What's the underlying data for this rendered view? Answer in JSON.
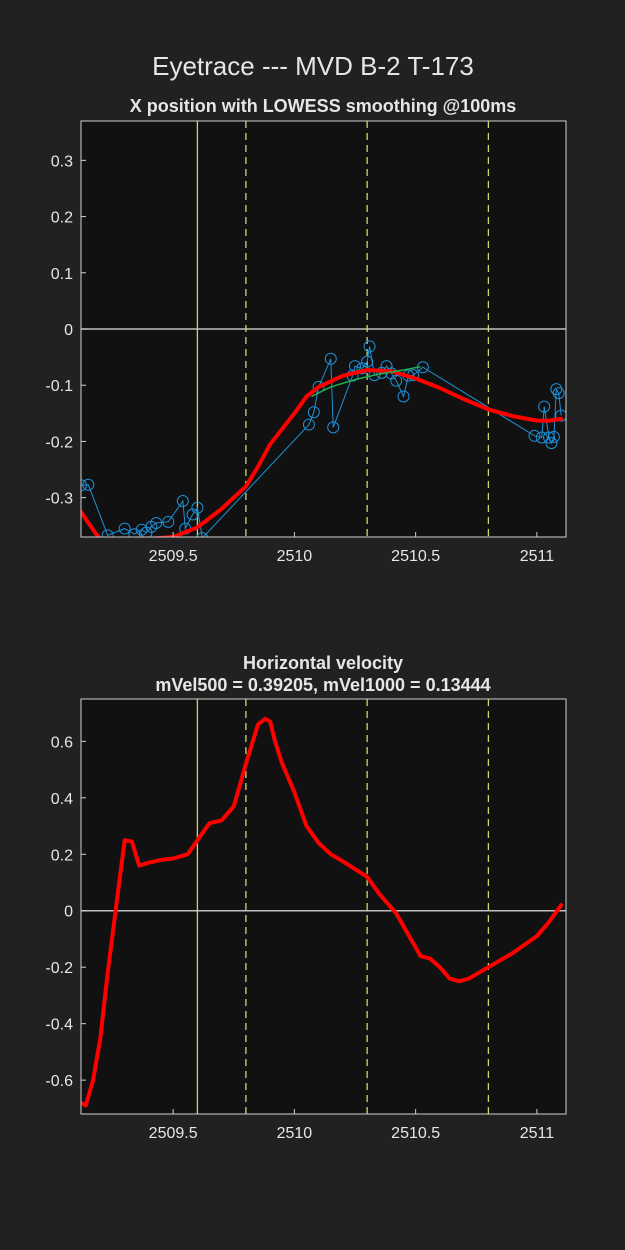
{
  "figure_title": "Eyetrace --- MVD B-2 T-173",
  "colors": {
    "background": "#212121",
    "axes_background": "#111111",
    "trace": "#ff0000",
    "raw_points": "#1e90d8",
    "fit": "#22b14c",
    "event_line": "#d4d46a",
    "zero_line": "#c0c0c0",
    "text": "#e6e6e6"
  },
  "chart_data": [
    {
      "type": "line",
      "title": "X position with LOWESS smoothing @100ms",
      "xlabel": "",
      "ylabel": "",
      "xlim": [
        2509.12,
        2511.12
      ],
      "ylim": [
        -0.37,
        0.37
      ],
      "x_ticks": [
        2509.5,
        2510,
        2510.5,
        2511
      ],
      "x_tick_labels": [
        "2509.5",
        "2510",
        "2510.5",
        "2511"
      ],
      "y_ticks": [
        -0.3,
        -0.2,
        -0.1,
        0,
        0.1,
        0.2,
        0.3
      ],
      "y_tick_labels": [
        "-0.3",
        "-0.2",
        "-0.1",
        "0",
        "0.1",
        "0.2",
        "0.3"
      ],
      "grid": false,
      "zero_line": 0,
      "event_lines_solid": [
        2509.6
      ],
      "event_lines_dashed": [
        2509.8,
        2510.3,
        2510.8
      ],
      "series": [
        {
          "style": "smoothed",
          "x": [
            2509.12,
            2509.15,
            2509.18,
            2509.2,
            2509.3,
            2509.4,
            2509.5,
            2509.6,
            2509.7,
            2509.8,
            2509.85,
            2509.9,
            2510.0,
            2510.05,
            2510.1,
            2510.2,
            2510.3,
            2510.4,
            2510.5,
            2510.6,
            2510.7,
            2510.8,
            2510.9,
            2511.0,
            2511.05,
            2511.1
          ],
          "y": [
            -0.325,
            -0.345,
            -0.363,
            -0.375,
            -0.375,
            -0.373,
            -0.37,
            -0.353,
            -0.32,
            -0.28,
            -0.245,
            -0.205,
            -0.15,
            -0.12,
            -0.103,
            -0.083,
            -0.073,
            -0.075,
            -0.088,
            -0.105,
            -0.125,
            -0.143,
            -0.155,
            -0.163,
            -0.163,
            -0.16
          ]
        },
        {
          "style": "fit",
          "x": [
            2510.07,
            2510.15,
            2510.25,
            2510.35,
            2510.45,
            2510.52
          ],
          "y": [
            -0.12,
            -0.103,
            -0.09,
            -0.08,
            -0.073,
            -0.067
          ]
        },
        {
          "style": "raw",
          "x": [
            2509.12,
            2509.15,
            2509.23,
            2509.3,
            2509.34,
            2509.37,
            2509.39,
            2509.41,
            2509.43,
            2509.48,
            2509.54,
            2509.55,
            2509.58,
            2509.6,
            2509.62,
            2510.06,
            2510.08,
            2510.1,
            2510.15,
            2510.16,
            2510.24,
            2510.25,
            2510.28,
            2510.3,
            2510.31,
            2510.33,
            2510.36,
            2510.38,
            2510.4,
            2510.42,
            2510.45,
            2510.47,
            2510.49,
            2510.53,
            2510.99,
            2511.02,
            2511.03,
            2511.05,
            2511.06,
            2511.07,
            2511.08,
            2511.09,
            2511.1
          ],
          "y": [
            -0.278,
            -0.277,
            -0.367,
            -0.355,
            -0.365,
            -0.357,
            -0.362,
            -0.352,
            -0.345,
            -0.343,
            -0.306,
            -0.355,
            -0.33,
            -0.318,
            -0.372,
            -0.17,
            -0.148,
            -0.103,
            -0.053,
            -0.175,
            -0.083,
            -0.066,
            -0.07,
            -0.058,
            -0.031,
            -0.082,
            -0.078,
            -0.066,
            -0.079,
            -0.092,
            -0.12,
            -0.083,
            -0.082,
            -0.068,
            -0.19,
            -0.193,
            -0.138,
            -0.193,
            -0.203,
            -0.192,
            -0.107,
            -0.114,
            -0.154
          ]
        }
      ]
    },
    {
      "type": "line",
      "title": "Horizontal velocity",
      "subtitle": "mVel500 = 0.39205, mVel1000 = 0.13444",
      "xlabel": "",
      "ylabel": "",
      "xlim": [
        2509.12,
        2511.12
      ],
      "ylim": [
        -0.72,
        0.75
      ],
      "x_ticks": [
        2509.5,
        2510,
        2510.5,
        2511
      ],
      "x_tick_labels": [
        "2509.5",
        "2510",
        "2510.5",
        "2511"
      ],
      "y_ticks": [
        -0.6,
        -0.4,
        -0.2,
        0,
        0.2,
        0.4,
        0.6
      ],
      "y_tick_labels": [
        "-0.6",
        "-0.4",
        "-0.2",
        "0",
        "0.2",
        "0.4",
        "0.6"
      ],
      "grid": false,
      "zero_line": 0,
      "event_lines_solid": [
        2509.6
      ],
      "event_lines_dashed": [
        2509.8,
        2510.3,
        2510.8
      ],
      "series": [
        {
          "style": "smoothed",
          "x": [
            2509.12,
            2509.14,
            2509.17,
            2509.2,
            2509.23,
            2509.27,
            2509.3,
            2509.33,
            2509.36,
            2509.4,
            2509.45,
            2509.5,
            2509.56,
            2509.6,
            2509.65,
            2509.7,
            2509.75,
            2509.8,
            2509.85,
            2509.88,
            2509.9,
            2509.92,
            2509.95,
            2510.0,
            2510.05,
            2510.1,
            2510.15,
            2510.2,
            2510.3,
            2510.35,
            2510.42,
            2510.48,
            2510.52,
            2510.56,
            2510.6,
            2510.64,
            2510.68,
            2510.72,
            2510.8,
            2510.9,
            2511.0,
            2511.05,
            2511.1
          ],
          "y": [
            -0.68,
            -0.69,
            -0.6,
            -0.45,
            -0.22,
            0.05,
            0.25,
            0.245,
            0.16,
            0.17,
            0.18,
            0.185,
            0.2,
            0.25,
            0.31,
            0.32,
            0.37,
            0.52,
            0.66,
            0.68,
            0.67,
            0.6,
            0.52,
            0.42,
            0.3,
            0.24,
            0.2,
            0.175,
            0.12,
            0.06,
            -0.01,
            -0.1,
            -0.16,
            -0.17,
            -0.2,
            -0.24,
            -0.25,
            -0.24,
            -0.2,
            -0.15,
            -0.09,
            -0.04,
            0.02
          ]
        }
      ]
    }
  ]
}
